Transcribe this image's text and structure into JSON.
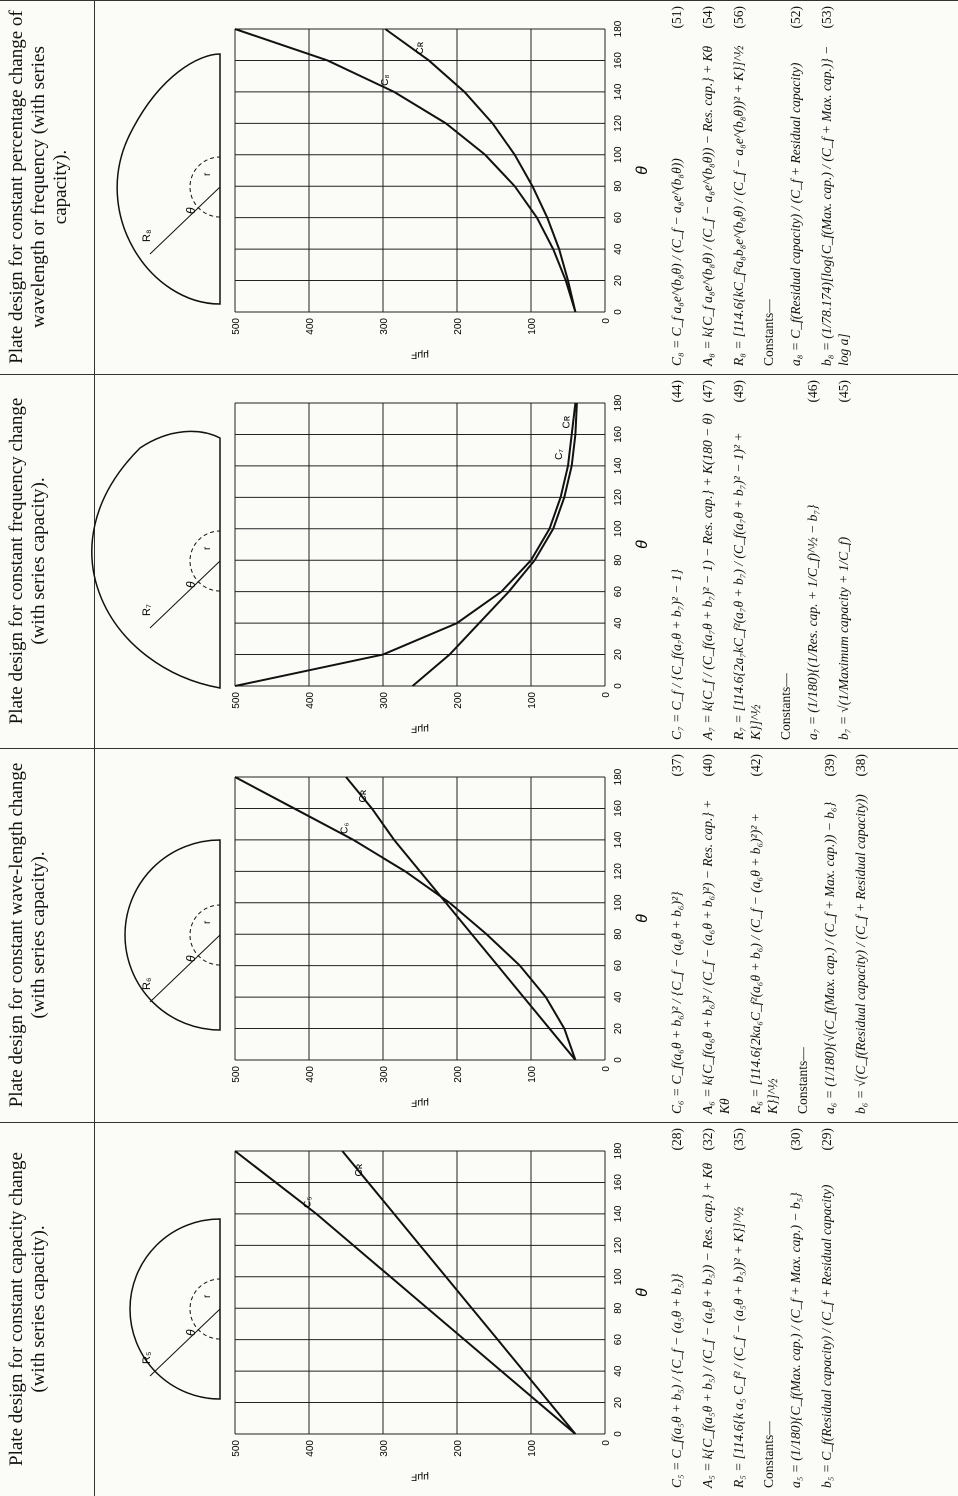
{
  "panels": [
    {
      "title": "Plate design for constant capacity change (with series capacity).",
      "plate_label": "R₅",
      "theta_label": "θ",
      "radius_label": "r",
      "chart": {
        "type": "line",
        "x_label": "θ",
        "y_label": "μμF",
        "x": [
          0,
          20,
          40,
          60,
          80,
          100,
          120,
          140,
          160,
          180
        ],
        "xlim": [
          0,
          180
        ],
        "ylim": [
          0,
          500
        ],
        "xticks": [
          0,
          20,
          40,
          60,
          80,
          100,
          120,
          140,
          160,
          180
        ],
        "yticks": [
          0,
          100,
          200,
          300,
          400,
          500
        ],
        "grid": true,
        "series": [
          {
            "name": "C₅",
            "color": "#111111",
            "values": [
              40,
              90,
              140,
              190,
              240,
              290,
              340,
              390,
              445,
              500
            ]
          },
          {
            "name": "Cʀ",
            "color": "#111111",
            "values": [
              40,
              75,
              110,
              145,
              180,
              215,
              250,
              285,
              320,
              355
            ]
          }
        ]
      },
      "formulas": [
        {
          "text": "C₅ = C_f(a₅θ + b₅) / {C_f − (a₅θ + b₅)}",
          "number": "(28)"
        },
        {
          "text": "A₅ = k{C_f(a₅θ + b₅) / (C_f − (a₅θ + b₅)) − Res. cap.} + Kθ",
          "number": "(32)"
        },
        {
          "text": "R₅ = [114.6{k a₅ C_f² / (C_f − (a₅θ + b₅))² + K}]^½",
          "number": "(35)"
        }
      ],
      "constants_label": "Constants—",
      "constants": [
        {
          "text": "a₅ = (1/180){C_f(Max. cap.) / (C_f + Max. cap.) − b₅}",
          "number": "(30)"
        },
        {
          "text": "b₅ = C_f(Residual capacity) / (C_f + Residual capacity)",
          "number": "(29)"
        }
      ]
    },
    {
      "title": "Plate design for constant wave-length change (with series capacity).",
      "plate_label": "R₆",
      "theta_label": "θ",
      "radius_label": "r",
      "chart": {
        "type": "line",
        "x_label": "θ",
        "y_label": "μμF",
        "x": [
          0,
          20,
          40,
          60,
          80,
          100,
          120,
          140,
          160,
          180
        ],
        "xlim": [
          0,
          180
        ],
        "ylim": [
          0,
          500
        ],
        "xticks": [
          0,
          20,
          40,
          60,
          80,
          100,
          120,
          140,
          160,
          180
        ],
        "yticks": [
          0,
          100,
          200,
          300,
          400,
          500
        ],
        "grid": true,
        "series": [
          {
            "name": "C₆",
            "color": "#111111",
            "values": [
              40,
              55,
              80,
              115,
              160,
              210,
              270,
              340,
              420,
              500
            ]
          },
          {
            "name": "Cʀ",
            "color": "#111111",
            "values": [
              40,
              75,
              110,
              145,
              180,
              215,
              250,
              285,
              315,
              350
            ]
          }
        ]
      },
      "formulas": [
        {
          "text": "C₆ = C_f(a₆θ + b₆)² / {C_f − (a₆θ + b₆)²}",
          "number": "(37)"
        },
        {
          "text": "A₆ = k{C_f(a₆θ + b₆)² / (C_f − (a₆θ + b₆)²) − Res. cap.} + Kθ",
          "number": "(40)"
        },
        {
          "text": "R₆ = [114.6{2ka₆C_f²(a₆θ + b₆) / (C_f − (a₆θ + b₆)²)² + K}]^½",
          "number": "(42)"
        }
      ],
      "constants_label": "Constants—",
      "constants": [
        {
          "text": "a₆ = (1/180){√(C_f(Max. cap.) / (C_f + Max. cap.)) − b₆}",
          "number": "(39)"
        },
        {
          "text": "b₆ = √(C_f(Residual capacity) / (C_f + Residual capacity))",
          "number": "(38)"
        }
      ]
    },
    {
      "title": "Plate design for constant frequency change (with series capacity).",
      "plate_label": "R₇",
      "theta_label": "θ",
      "radius_label": "r",
      "chart": {
        "type": "line",
        "x_label": "θ",
        "y_label": "μμF",
        "x": [
          0,
          20,
          40,
          60,
          80,
          100,
          120,
          140,
          160,
          180
        ],
        "xlim": [
          0,
          180
        ],
        "ylim": [
          0,
          500
        ],
        "xticks": [
          0,
          20,
          40,
          60,
          80,
          100,
          120,
          140,
          160,
          180
        ],
        "yticks": [
          0,
          100,
          200,
          300,
          400,
          500
        ],
        "grid": true,
        "series": [
          {
            "name": "C₇",
            "color": "#111111",
            "values": [
              500,
              300,
              200,
              140,
              100,
              75,
              60,
              50,
              45,
              40
            ]
          },
          {
            "name": "Cʀ",
            "color": "#111111",
            "values": [
              260,
              210,
              170,
              130,
              95,
              70,
              55,
              45,
              40,
              38
            ]
          }
        ]
      },
      "formulas": [
        {
          "text": "C₇ = C_f / {C_f(a₇θ + b₇)² − 1}",
          "number": "(44)"
        },
        {
          "text": "A₇ = k{C_f / (C_f(a₇θ + b₇)² − 1) − Res. cap.} + K(180 − θ)",
          "number": "(47)"
        },
        {
          "text": "R₇ = [114.6{2a₇kC_f²(a₇θ + b₇) / (C_f(a₇θ + b₇)² − 1)² + K}]^½",
          "number": "(49)"
        }
      ],
      "constants_label": "Constants—",
      "constants": [
        {
          "text": "a₇ = (1/180){(1/Res. cap. + 1/C_f)^½ − b₇}",
          "number": "(46)"
        },
        {
          "text": "b₇ = √(1/Maximum capacity + 1/C_f)",
          "number": "(45)"
        }
      ]
    },
    {
      "title": "Plate design for constant percentage change of wavelength or frequency (with series capacity).",
      "plate_label": "R₈",
      "theta_label": "θ",
      "radius_label": "r",
      "chart": {
        "type": "line",
        "x_label": "θ",
        "y_label": "μμF",
        "x": [
          0,
          20,
          40,
          60,
          80,
          100,
          120,
          140,
          160,
          180
        ],
        "xlim": [
          0,
          180
        ],
        "ylim": [
          0,
          500
        ],
        "xticks": [
          0,
          20,
          40,
          60,
          80,
          100,
          120,
          140,
          160,
          180
        ],
        "yticks": [
          0,
          100,
          200,
          300,
          400,
          500
        ],
        "grid": true,
        "series": [
          {
            "name": "C₈",
            "color": "#111111",
            "values": [
              40,
              53,
              70,
              92,
              122,
              162,
              215,
              285,
              375,
              500
            ]
          },
          {
            "name": "Cʀ",
            "color": "#111111",
            "values": [
              40,
              50,
              62,
              78,
              98,
              122,
              152,
              190,
              238,
              297
            ]
          }
        ]
      },
      "formulas": [
        {
          "text": "C₈ = C_f a₈e^(b₈θ) / (C_f − a₈e^(b₈θ))",
          "number": "(51)"
        },
        {
          "text": "A₈ = k{C_f a₈e^(b₈θ) / (C_f − a₈e^(b₈θ)) − Res. cap.} + Kθ",
          "number": "(54)"
        },
        {
          "text": "R₈ = [114.6{kC_f²a₈b₈e^(b₈θ) / (C_f − a₈e^(b₈θ))² + K}]^½",
          "number": "(56)"
        }
      ],
      "constants_label": "Constants—",
      "constants": [
        {
          "text": "a₈ = C_f(Residual capacity) / (C_f + Residual capacity)",
          "number": "(52)"
        },
        {
          "text": "b₈ = (1/78.174)[log{C_f(Max. cap.) / (C_f + Max. cap.)} − log a]",
          "number": "(53)"
        }
      ]
    }
  ]
}
